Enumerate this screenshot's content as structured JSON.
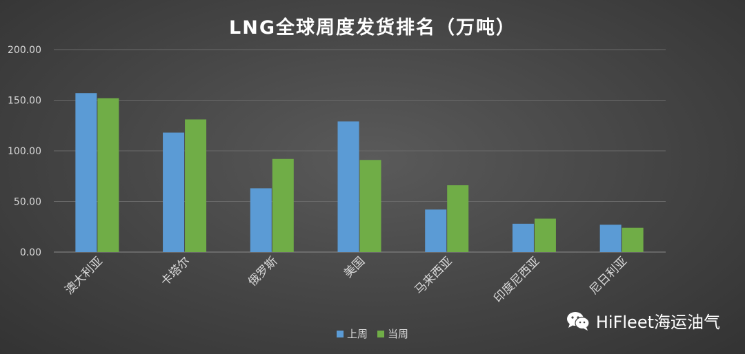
{
  "chart_data": {
    "type": "bar",
    "title": "LNG全球周度发货排名（万吨）",
    "categories": [
      "澳大利亚",
      "卡塔尔",
      "俄罗斯",
      "美国",
      "马来西亚",
      "印度尼西亚",
      "尼日利亚"
    ],
    "series": [
      {
        "name": "上周",
        "color": "#5b9bd5",
        "values": [
          157,
          118,
          63,
          129,
          42,
          28,
          27
        ]
      },
      {
        "name": "当周",
        "color": "#70ad47",
        "values": [
          152,
          131,
          92,
          91,
          66,
          33,
          24
        ]
      }
    ],
    "ylim": [
      0,
      200
    ],
    "yticks": [
      "0.00",
      "50.00",
      "100.00",
      "150.00",
      "200.00"
    ],
    "grid": true,
    "legend": "bottom"
  },
  "watermark": {
    "text": "HiFleet海运油气",
    "icon": "wechat-icon"
  }
}
